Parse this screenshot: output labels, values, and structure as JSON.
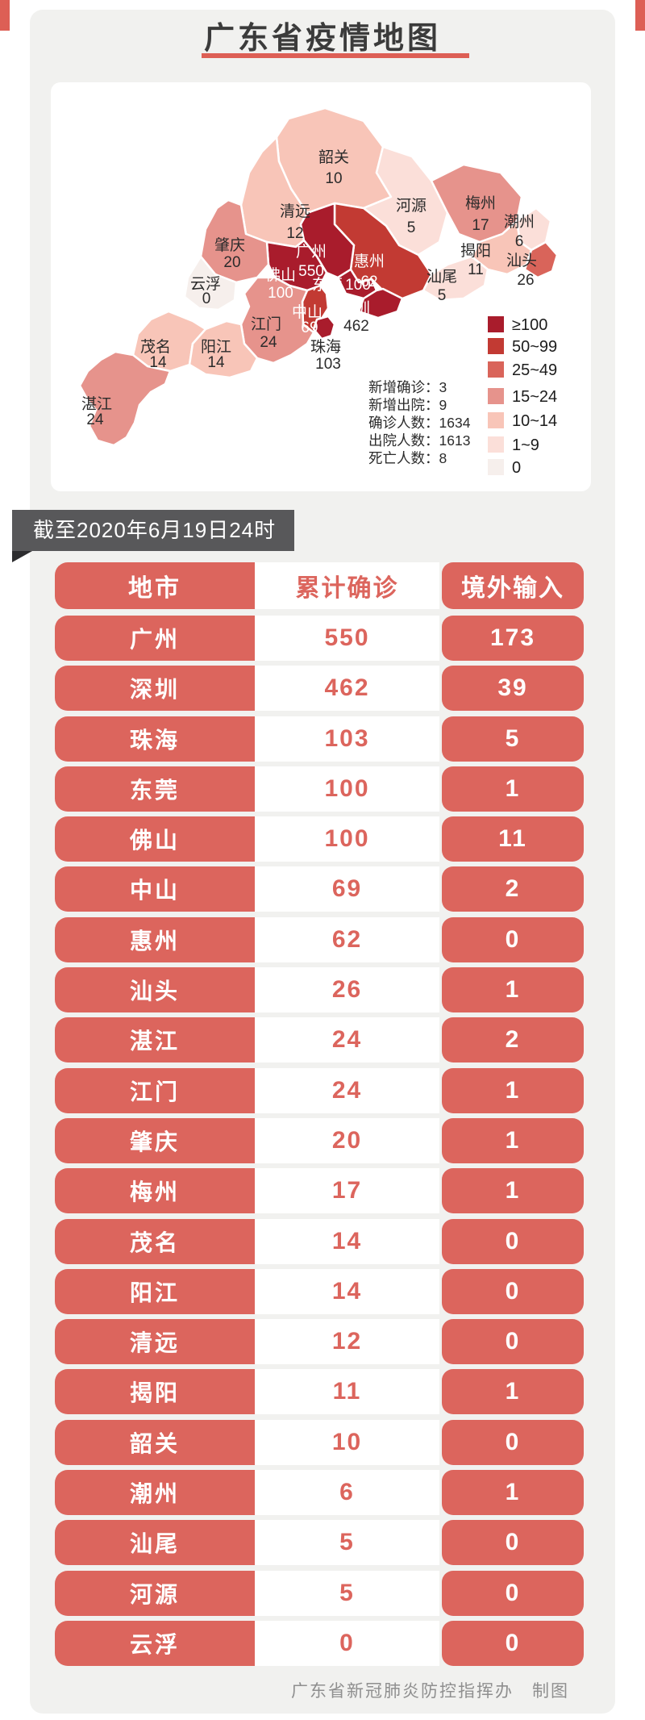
{
  "page": {
    "title": "广东省疫情地图"
  },
  "banner": {
    "text": "截至2020年6月19日24时"
  },
  "map": {
    "stats": [
      "新增确诊：3",
      "新增出院：9",
      "确诊人数：1634",
      "出院人数：1613",
      "死亡人数：8"
    ],
    "legend": [
      {
        "label": "≥100",
        "color": "#a91c2c",
        "min": 100
      },
      {
        "label": "50~99",
        "color": "#c23a33",
        "min": 50
      },
      {
        "label": "25~49",
        "color": "#d9645a",
        "min": 25
      },
      {
        "label": "15~24",
        "color": "#e6938c",
        "min": 15
      },
      {
        "label": "10~14",
        "color": "#f8c5b8",
        "min": 10
      },
      {
        "label": "1~9",
        "color": "#fbdfd9",
        "min": 1
      },
      {
        "label": "0",
        "color": "#f6efec",
        "min": 0
      }
    ],
    "cities": [
      {
        "key": "shaoguan",
        "name": "韶关",
        "cases": 10
      },
      {
        "key": "qingyuan",
        "name": "清远",
        "cases": 12
      },
      {
        "key": "heyuan",
        "name": "河源",
        "cases": 5
      },
      {
        "key": "meizhou",
        "name": "梅州",
        "cases": 17
      },
      {
        "key": "chaozhou",
        "name": "潮州",
        "cases": 6
      },
      {
        "key": "jieyang",
        "name": "揭阳",
        "cases": 11
      },
      {
        "key": "shantou",
        "name": "汕头",
        "cases": 26
      },
      {
        "key": "shanwei",
        "name": "汕尾",
        "cases": 5
      },
      {
        "key": "huizhou",
        "name": "惠州",
        "cases": 62
      },
      {
        "key": "guangzhou",
        "name": "广州",
        "cases": 550
      },
      {
        "key": "dongguan",
        "name": "东莞",
        "cases": 100
      },
      {
        "key": "shenzhen",
        "name": "深圳",
        "cases": 462
      },
      {
        "key": "foshan",
        "name": "佛山",
        "cases": 100
      },
      {
        "key": "zhongshan",
        "name": "中山",
        "cases": 69
      },
      {
        "key": "zhuhai",
        "name": "珠海",
        "cases": 103
      },
      {
        "key": "jiangmen",
        "name": "江门",
        "cases": 24
      },
      {
        "key": "zhaoqing",
        "name": "肇庆",
        "cases": 20
      },
      {
        "key": "yunfu",
        "name": "云浮",
        "cases": 0
      },
      {
        "key": "maoming",
        "name": "茂名",
        "cases": 14
      },
      {
        "key": "yangjiang",
        "name": "阳江",
        "cases": 14
      },
      {
        "key": "zhanjiang",
        "name": "湛江",
        "cases": 24
      }
    ]
  },
  "table": {
    "headers": [
      "地市",
      "累计确诊",
      "境外输入"
    ],
    "rows": [
      [
        "广州",
        "550",
        "173"
      ],
      [
        "深圳",
        "462",
        "39"
      ],
      [
        "珠海",
        "103",
        "5"
      ],
      [
        "东莞",
        "100",
        "1"
      ],
      [
        "佛山",
        "100",
        "11"
      ],
      [
        "中山",
        "69",
        "2"
      ],
      [
        "惠州",
        "62",
        "0"
      ],
      [
        "汕头",
        "26",
        "1"
      ],
      [
        "湛江",
        "24",
        "2"
      ],
      [
        "江门",
        "24",
        "1"
      ],
      [
        "肇庆",
        "20",
        "1"
      ],
      [
        "梅州",
        "17",
        "1"
      ],
      [
        "茂名",
        "14",
        "0"
      ],
      [
        "阳江",
        "14",
        "0"
      ],
      [
        "清远",
        "12",
        "0"
      ],
      [
        "揭阳",
        "11",
        "1"
      ],
      [
        "韶关",
        "10",
        "0"
      ],
      [
        "潮州",
        "6",
        "1"
      ],
      [
        "汕尾",
        "5",
        "0"
      ],
      [
        "河源",
        "5",
        "0"
      ],
      [
        "云浮",
        "0",
        "0"
      ]
    ]
  },
  "footer": {
    "credit": "广东省新冠肺炎防控指挥办　制图"
  },
  "colors": {
    "accent_red": "#dc655d",
    "underline_red": "#dd5f55",
    "banner_gray": "#58585a",
    "panel_gray": "#f1f1ef",
    "title_text": "#3b3b3b",
    "map_label_dark": "#2b2b2b"
  }
}
